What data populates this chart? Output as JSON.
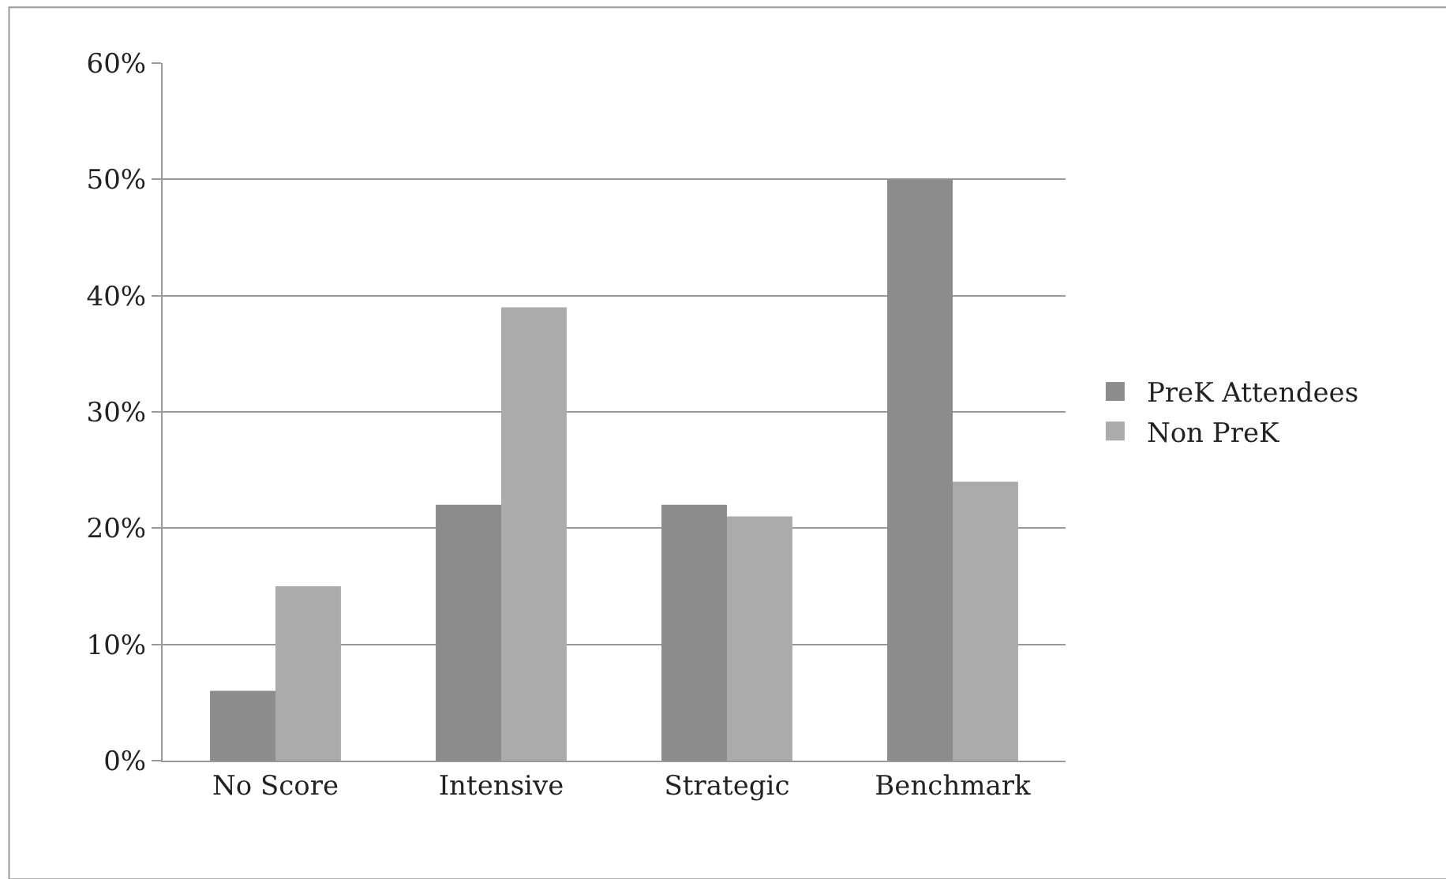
{
  "chart_data": {
    "type": "bar",
    "categories": [
      "No Score",
      "Intensive",
      "Strategic",
      "Benchmark"
    ],
    "series": [
      {
        "name": "PreK Attendees",
        "color": "#8c8c8c",
        "values": [
          6,
          22,
          22,
          50
        ]
      },
      {
        "name": "Non PreK",
        "color": "#ababab",
        "values": [
          15,
          39,
          21,
          24
        ]
      }
    ],
    "ylim": [
      0,
      60
    ],
    "yticks": [
      {
        "value": 0,
        "label": "0%"
      },
      {
        "value": 10,
        "label": "10%"
      },
      {
        "value": 20,
        "label": "20%"
      },
      {
        "value": 30,
        "label": "30%"
      },
      {
        "value": 40,
        "label": "40%"
      },
      {
        "value": 50,
        "label": "50%"
      },
      {
        "value": 60,
        "label": "60%"
      }
    ],
    "grid": "y",
    "legend": "right"
  }
}
